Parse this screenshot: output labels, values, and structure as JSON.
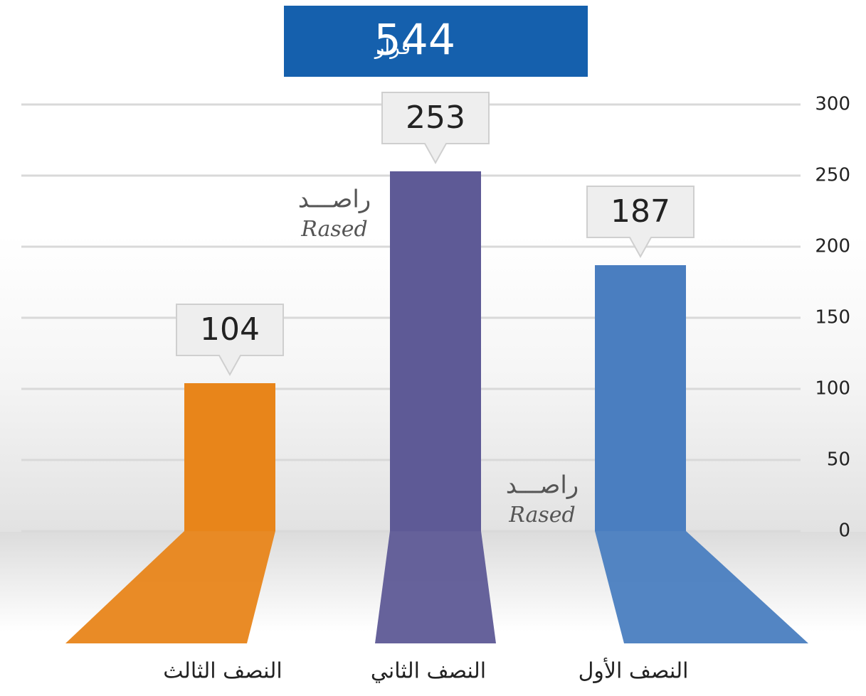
{
  "chart_data": {
    "type": "bar",
    "total": 544,
    "total_label": "قرار",
    "categories": [
      "النصف الثالث",
      "النصف الثاني",
      "النصف الأول"
    ],
    "values": [
      104,
      253,
      187
    ],
    "colors": [
      "#e8851a",
      "#5e5a96",
      "#4a7ec0"
    ],
    "ylim": [
      0,
      300
    ],
    "yticks": [
      0,
      50,
      100,
      150,
      200,
      250,
      300
    ],
    "grid": true,
    "watermark": {
      "arabic": "راصـــد",
      "latin": "Rased"
    }
  }
}
